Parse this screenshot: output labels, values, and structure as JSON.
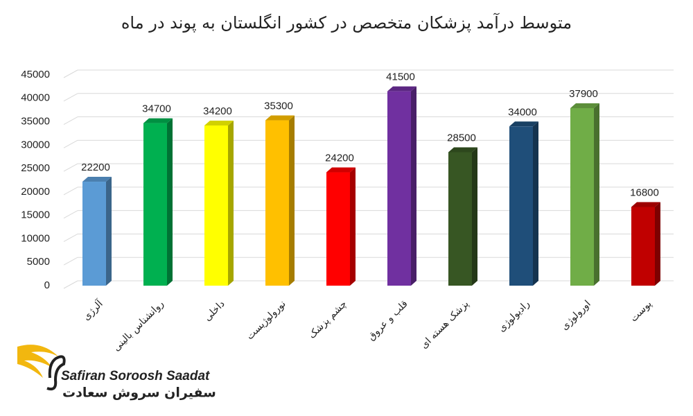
{
  "chart_data": {
    "type": "bar",
    "title": "متوسط درآمد پزشکان متخصص در کشور انگلستان به پوند در ماه",
    "categories": [
      "آلرژی",
      "روانشناس بالینی",
      "داخلی",
      "نورولوژیست",
      "چشم پزشک",
      "قلب و عروق",
      "پزشک هسته ای",
      "رادیولوژی",
      "اورولوژی",
      "پوست"
    ],
    "values": [
      22200,
      34700,
      34200,
      35300,
      24200,
      41500,
      28500,
      34000,
      37900,
      16800
    ],
    "colors": [
      "#5b9bd5",
      "#00b050",
      "#ffff00",
      "#ffc000",
      "#ff0000",
      "#7030a0",
      "#375623",
      "#1f4e79",
      "#70ad47",
      "#c00000"
    ],
    "ylim": [
      0,
      45000
    ],
    "yticks": [
      0,
      5000,
      10000,
      15000,
      20000,
      25000,
      30000,
      35000,
      40000,
      45000
    ],
    "grid": true
  },
  "logo": {
    "name_en": "Safiran Soroosh Saadat",
    "name_fa": "سفیران سروش سعادت"
  }
}
